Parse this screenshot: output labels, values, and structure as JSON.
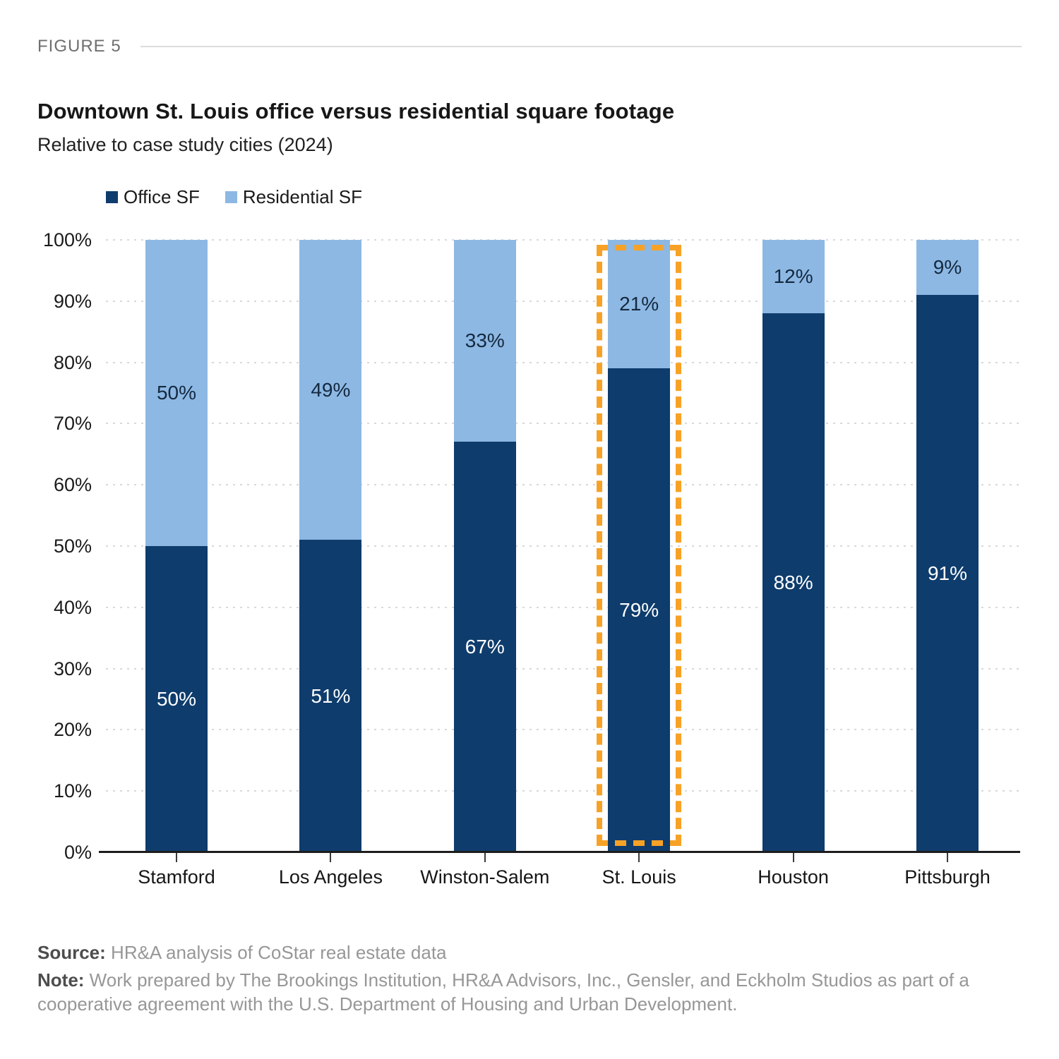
{
  "figure": {
    "label": "FIGURE 5"
  },
  "header": {
    "title": "Downtown St. Louis office versus residential square footage",
    "subtitle": "Relative to case study cities (2024)"
  },
  "chart_data": {
    "type": "bar",
    "variant": "100-percent-stacked-column",
    "title": "Downtown St. Louis office versus residential square footage",
    "subtitle": "Relative to case study cities (2024)",
    "categories": [
      "Stamford",
      "Los Angeles",
      "Winston-Salem",
      "St. Louis",
      "Houston",
      "Pittsburgh"
    ],
    "series": [
      {
        "name": "Office SF",
        "color": "#0e3c6c",
        "values": [
          50,
          51,
          67,
          79,
          88,
          91
        ]
      },
      {
        "name": "Residential SF",
        "color": "#8db8e4",
        "values": [
          50,
          49,
          33,
          21,
          12,
          9
        ]
      }
    ],
    "value_suffix": "%",
    "ylim": [
      0,
      100
    ],
    "y_ticks": [
      "0%",
      "10%",
      "20%",
      "30%",
      "40%",
      "50%",
      "60%",
      "70%",
      "80%",
      "90%",
      "100%"
    ],
    "grid": "dotted-horizontal",
    "legend_position": "top-left",
    "highlight": {
      "category": "St. Louis",
      "color": "#f7a226",
      "style": "dashed-outline"
    }
  },
  "footer": {
    "source_label": "Source:",
    "source_text": " HR&A analysis of CoStar real estate data",
    "note_label": "Note:",
    "note_text": " Work prepared by The Brookings Institution, HR&A Advisors, Inc., Gensler, and Eckholm Studios as part of a cooperative agreement with the U.S. Department of Housing and Urban Development."
  }
}
